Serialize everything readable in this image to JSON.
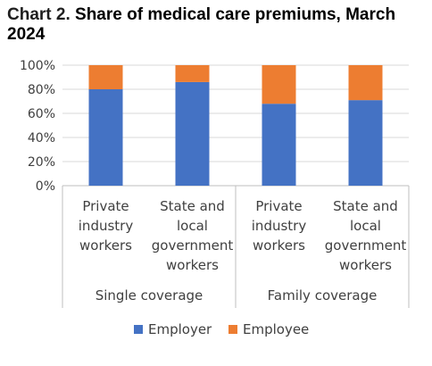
{
  "page": {
    "title_prefix": "Chart 2.",
    "title_main": "Share of medical care premiums, March 2024"
  },
  "chart_data": {
    "type": "bar",
    "stacked": true,
    "percent_axis": true,
    "title": "Chart 2. Share of medical care premiums, March 2024",
    "categories": [
      "Private industry workers",
      "State and local government workers",
      "Private industry workers",
      "State and local government workers"
    ],
    "category_lines": [
      [
        "Private",
        "industry",
        "workers"
      ],
      [
        "State and",
        "local",
        "government",
        "workers"
      ],
      [
        "Private",
        "industry",
        "workers"
      ],
      [
        "State and",
        "local",
        "government",
        "workers"
      ]
    ],
    "groups": [
      {
        "label": "Single coverage",
        "categories": [
          0,
          1
        ]
      },
      {
        "label": "Family coverage",
        "categories": [
          2,
          3
        ]
      }
    ],
    "series": [
      {
        "name": "Employer",
        "color": "#4472C4",
        "values": [
          80,
          86,
          68,
          71
        ]
      },
      {
        "name": "Employee",
        "color": "#ED7D31",
        "values": [
          20,
          14,
          32,
          29
        ]
      }
    ],
    "ylim": [
      0,
      100
    ],
    "yticks": [
      0,
      20,
      40,
      60,
      80,
      100
    ],
    "ytick_labels": [
      "0%",
      "20%",
      "40%",
      "60%",
      "80%",
      "100%"
    ],
    "grid": true,
    "legend": "bottom",
    "xlabel": "",
    "ylabel": ""
  }
}
